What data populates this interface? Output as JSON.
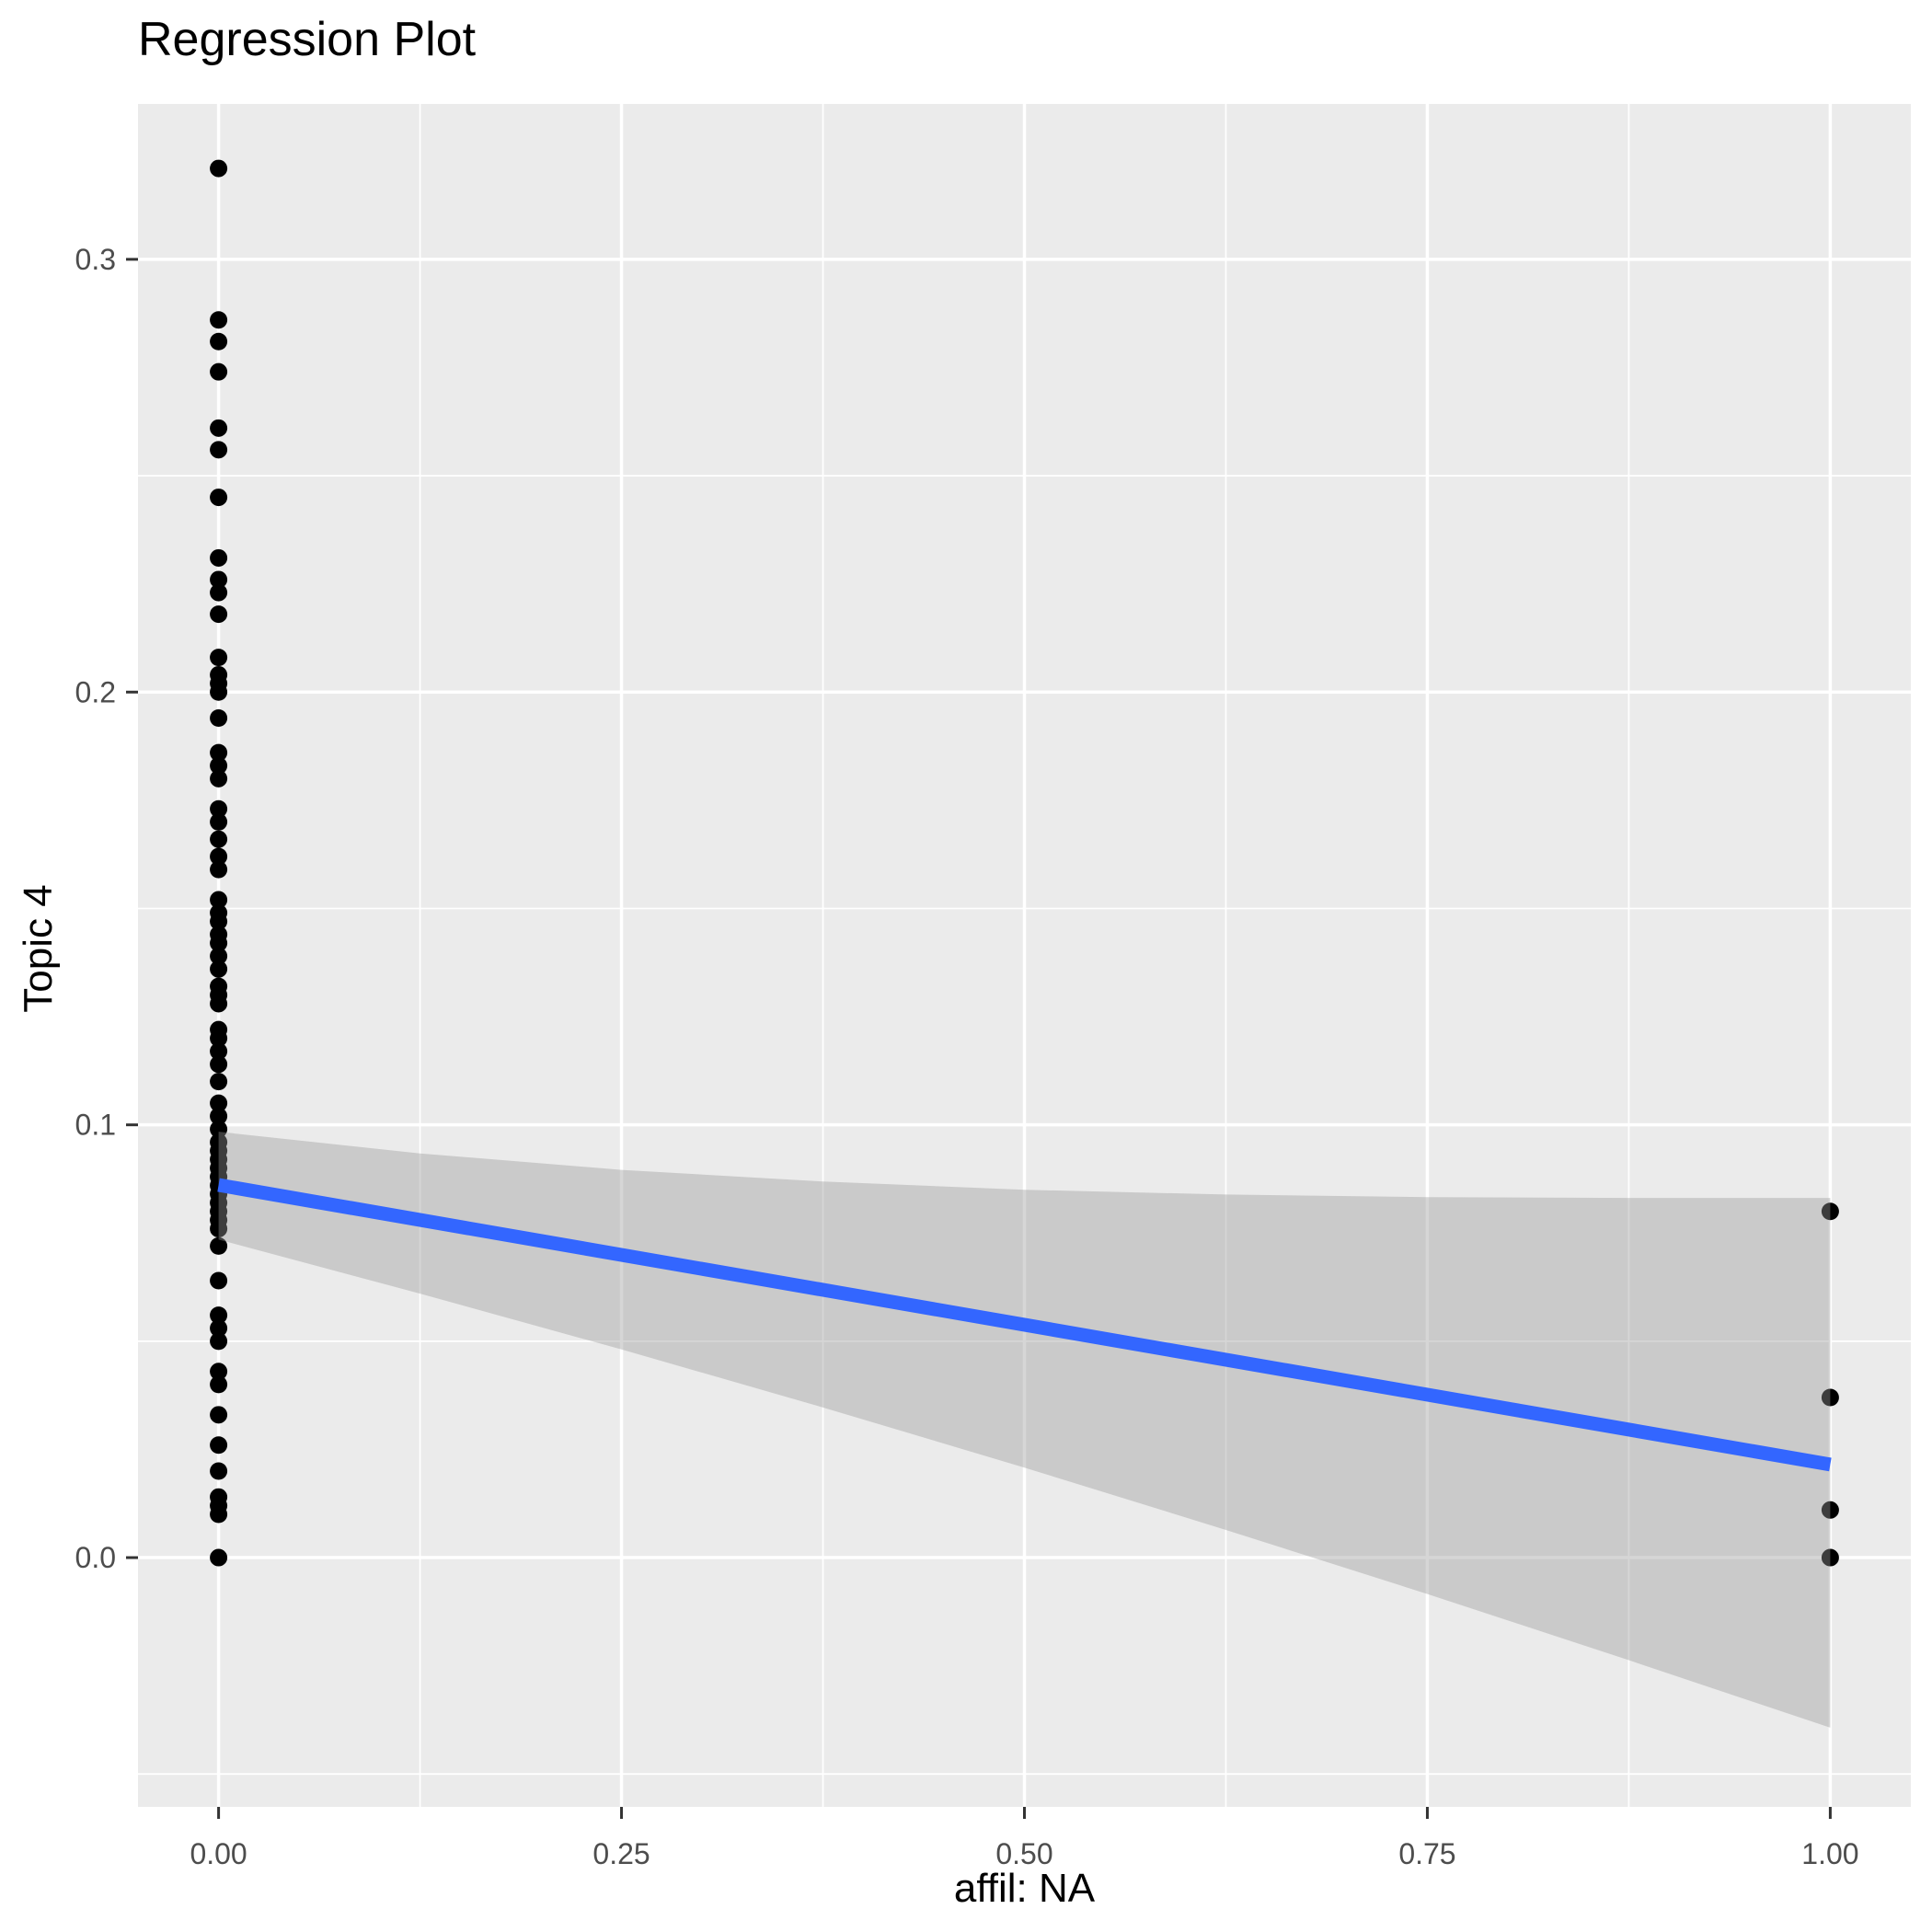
{
  "chart_data": {
    "type": "scatter",
    "title": "Regression Plot",
    "xlabel": "affil: NA",
    "ylabel": "Topic 4",
    "xlim": [
      -0.05,
      1.05
    ],
    "ylim": [
      -0.0576,
      0.3359
    ],
    "grid": true,
    "legend": "none",
    "x_ticks": {
      "values": [
        0.0,
        0.25,
        0.5,
        0.75,
        1.0
      ],
      "labels": [
        "0.00",
        "0.25",
        "0.50",
        "0.75",
        "1.00"
      ]
    },
    "y_ticks": {
      "values": [
        0.0,
        0.1,
        0.2,
        0.3
      ],
      "labels": [
        "0.0",
        "0.1",
        "0.2",
        "0.3"
      ]
    },
    "x_minor_ticks": [
      0.125,
      0.375,
      0.625,
      0.875
    ],
    "y_minor_ticks": [
      -0.05,
      0.05,
      0.15,
      0.25
    ],
    "colors": {
      "panel_bg": "#EBEBEB",
      "grid": "#FFFFFF",
      "tick_mark": "#333333",
      "tick_label": "#4D4D4D",
      "point": "#000000",
      "line": "#3366FF",
      "ribbon": "#999999"
    },
    "ribbon_alpha": 0.4,
    "series": [
      {
        "name": "observations-x0",
        "kind": "points",
        "x": 0.0,
        "y": [
          0.321,
          0.286,
          0.281,
          0.274,
          0.261,
          0.256,
          0.245,
          0.231,
          0.226,
          0.223,
          0.218,
          0.208,
          0.204,
          0.202,
          0.2,
          0.194,
          0.186,
          0.183,
          0.18,
          0.173,
          0.17,
          0.166,
          0.162,
          0.159,
          0.152,
          0.149,
          0.147,
          0.144,
          0.142,
          0.139,
          0.136,
          0.132,
          0.13,
          0.128,
          0.122,
          0.12,
          0.117,
          0.114,
          0.11,
          0.105,
          0.102,
          0.099,
          0.096,
          0.094,
          0.092,
          0.09,
          0.088,
          0.086,
          0.084,
          0.082,
          0.08,
          0.078,
          0.076,
          0.072,
          0.064,
          0.056,
          0.053,
          0.05,
          0.043,
          0.04,
          0.033,
          0.026,
          0.02,
          0.014,
          0.012,
          0.01,
          0.0
        ]
      },
      {
        "name": "observations-x1",
        "kind": "points",
        "x": 1.0,
        "y": [
          0.08,
          0.037,
          0.011,
          0.0
        ]
      },
      {
        "name": "confidence-band",
        "kind": "ribbon",
        "upper": [
          [
            0,
            0.0984
          ],
          [
            0.125,
            0.0934
          ],
          [
            0.25,
            0.0896
          ],
          [
            0.375,
            0.0869
          ],
          [
            0.5,
            0.085
          ],
          [
            0.625,
            0.0839
          ],
          [
            0.75,
            0.0833
          ],
          [
            0.875,
            0.0831
          ],
          [
            1,
            0.0831
          ]
        ],
        "lower": [
          [
            0,
            0.0735
          ],
          [
            0.125,
            0.061
          ],
          [
            0.25,
            0.0481
          ],
          [
            0.375,
            0.0347
          ],
          [
            0.5,
            0.0208
          ],
          [
            0.625,
            0.0064
          ],
          [
            0.75,
            -0.0084
          ],
          [
            0.875,
            -0.0237
          ],
          [
            1,
            -0.0393
          ]
        ]
      },
      {
        "name": "regression-line",
        "kind": "line",
        "points": [
          [
            0,
            0.0861
          ],
          [
            1,
            0.0215
          ]
        ]
      }
    ]
  }
}
